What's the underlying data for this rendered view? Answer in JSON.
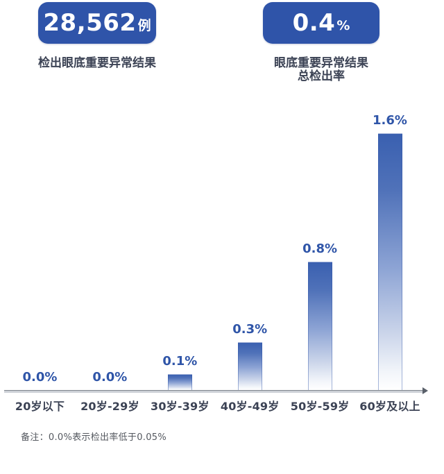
{
  "stats": {
    "detected": {
      "value": "28,562",
      "unit": "例",
      "label": "检出眼底重要异常结果"
    },
    "rate": {
      "value": "0.4",
      "unit": "%",
      "label_line1": "眼底重要异常结果",
      "label_line2": "总检出率"
    }
  },
  "chart_data": {
    "type": "bar",
    "title": "",
    "xlabel": "",
    "ylabel": "",
    "categories": [
      "20岁以下",
      "20岁-29岁",
      "30岁-39岁",
      "40岁-49岁",
      "50岁-59岁",
      "60岁及以上"
    ],
    "values": [
      0.0,
      0.0,
      0.1,
      0.3,
      0.8,
      1.6
    ],
    "value_labels": [
      "0.0%",
      "0.0%",
      "0.1%",
      "0.3%",
      "0.8%",
      "1.6%"
    ],
    "ylim": [
      0,
      1.7
    ],
    "grid": false,
    "legend": "none",
    "bar_style": "vertical gradient blue-to-white"
  },
  "footnote": "备注：0.0%表示检出率低于0.05%",
  "colors": {
    "card": "#2F54A9",
    "bar_top": "#3A60B0",
    "value_label": "#2F55A8",
    "axis_label": "#3B4254",
    "note": "#54585F",
    "axis_line": "#CDD1D7"
  }
}
